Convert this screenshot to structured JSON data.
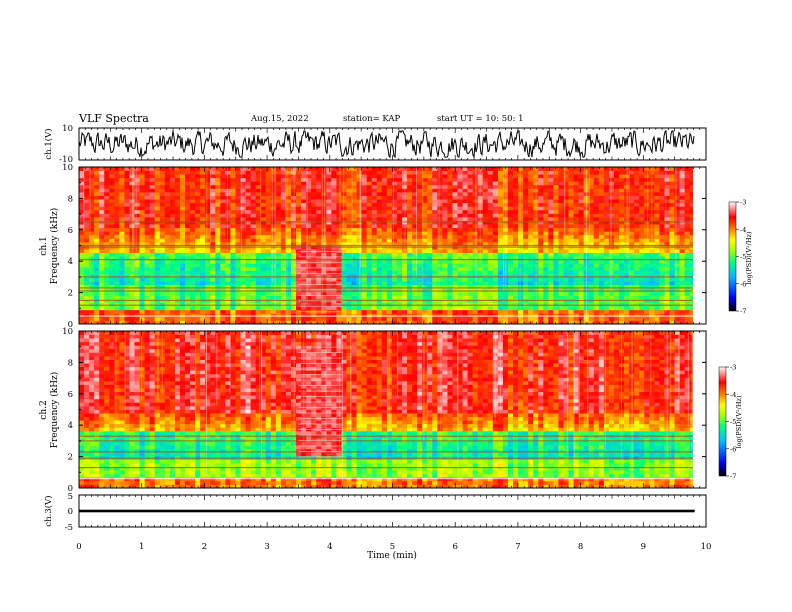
{
  "header": {
    "title": "VLF Spectra",
    "date": "Aug.15, 2022",
    "station": "station= KAP",
    "start": "start  UT  =   10: 50: 1"
  },
  "chart_data": [
    {
      "type": "line",
      "panel": "waveform-ch1",
      "ylabel": "ch.1(V)",
      "ylim": [
        -10,
        10
      ],
      "y_ticks": [
        "10",
        "-10"
      ],
      "grid": false
    },
    {
      "type": "heatmap",
      "panel": "spectrogram-ch1",
      "ylabel": "ch.1\nFrequency (kHz)",
      "ylim": [
        0,
        10
      ],
      "y_ticks": [
        "0",
        "2",
        "4",
        "6",
        "8",
        "10"
      ],
      "colorbar": {
        "label": "log(PSD)(V²/Hz)",
        "range": [
          -7,
          -3
        ],
        "ticks": [
          "-3",
          "-4",
          "-5",
          "-6",
          "-7"
        ]
      },
      "lines_khz": [
        0.5,
        1.2,
        1.5,
        2.1,
        2.3,
        3.0,
        4.1,
        4.9,
        5.0,
        6.5
      ],
      "bright_segment": {
        "start_min": 3.5,
        "end_min": 4.2,
        "min_khz": 0.8,
        "max_khz": 5.0
      }
    },
    {
      "type": "heatmap",
      "panel": "spectrogram-ch2",
      "ylabel": "ch.2\nFrequency (kHz)",
      "ylim": [
        0,
        10
      ],
      "y_ticks": [
        "0",
        "2",
        "4",
        "6",
        "8",
        "10"
      ],
      "colorbar": {
        "label": "log(PSD)(V²/Hz)",
        "range": [
          -7,
          -3
        ],
        "ticks": [
          "-3",
          "-4",
          "-5",
          "-6",
          "-7"
        ]
      },
      "lines_khz": [
        0.6,
        1.3,
        1.9,
        2.3,
        3.0,
        3.3
      ],
      "bright_segment": {
        "start_min": 3.5,
        "end_min": 4.2,
        "min_khz": 2.0,
        "max_khz": 9.0
      }
    },
    {
      "type": "line",
      "panel": "waveform-ch3",
      "ylabel": "ch.3(V)",
      "ylim": [
        -5,
        5
      ],
      "y_ticks": [
        "5",
        "0",
        "-5"
      ],
      "band": [
        -0.4,
        0.4
      ]
    }
  ],
  "x_axis": {
    "label": "Time (min)",
    "range": [
      0,
      10
    ],
    "data_end": 9.82,
    "ticks": [
      "0",
      "1",
      "2",
      "3",
      "4",
      "5",
      "6",
      "7",
      "8",
      "9",
      "10"
    ]
  },
  "colors": {
    "colormap": [
      "#000000",
      "#0000ff",
      "#00bfff",
      "#00ff80",
      "#a0ff00",
      "#ffff00",
      "#ff8000",
      "#ff0000",
      "#ffffff"
    ]
  }
}
